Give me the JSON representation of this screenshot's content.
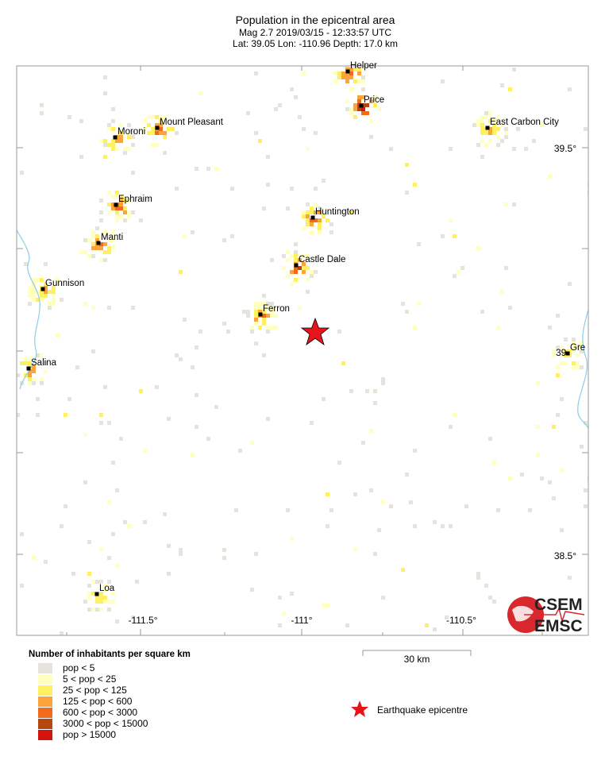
{
  "header": {
    "title": "Population in the epicentral area",
    "subtitle": "Mag 2.7  2019/03/15 - 12:33:57 UTC",
    "location": "Lat: 39.05    Lon: -110.96     Depth:  17.0 km"
  },
  "map": {
    "lon_labels": [
      "-111.5°",
      "-111°",
      "-110.5°"
    ],
    "lat_labels": [
      "39.5°",
      "38.5°",
      "39"
    ],
    "towns": [
      "Helper",
      "Price",
      "East Carbon City",
      "Moroni",
      "Mount Pleasant",
      "Ephraim",
      "Huntington",
      "Manti",
      "Castle Dale",
      "Gunnison",
      "Ferron",
      "Salina",
      "Loa",
      "Gre"
    ]
  },
  "legend": {
    "title": "Number of inhabitants per square km",
    "classes": [
      {
        "label": "pop < 5",
        "color": "#e4e4dc"
      },
      {
        "label": "5 < pop < 25",
        "color": "#ffffbe"
      },
      {
        "label": "25 < pop < 125",
        "color": "#fff060"
      },
      {
        "label": "125 < pop < 600",
        "color": "#fca43c"
      },
      {
        "label": "600 < pop < 3000",
        "color": "#f26a1c"
      },
      {
        "label": "3000 < pop < 15000",
        "color": "#b44810"
      },
      {
        "label": "pop > 15000",
        "color": "#d4140e"
      }
    ]
  },
  "scale_bar": "30 km",
  "epicentre_label": "Earthquake epicentre",
  "logo": {
    "top": "CSEM",
    "bottom": "EMSC"
  }
}
